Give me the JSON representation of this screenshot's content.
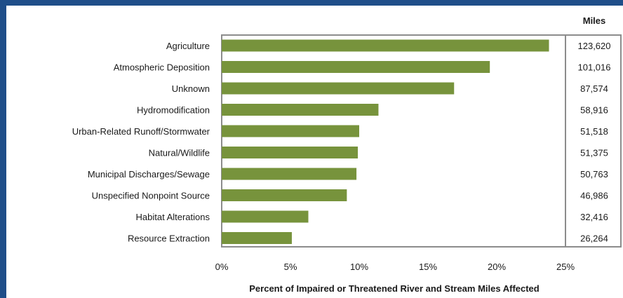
{
  "colors": {
    "background_border": "#1f4e89",
    "bar": "#77933c",
    "frame_line": "#8c8c8c"
  },
  "chart_data": {
    "type": "bar",
    "orientation": "horizontal",
    "categories": [
      "Agriculture",
      "Atmospheric Deposition",
      "Unknown",
      "Hydromodification",
      "Urban-Related Runoff/Stormwater",
      "Natural/Wildlife",
      "Municipal Discharges/Sewage",
      "Unspecified Nonpoint Source",
      "Habitat Alterations",
      "Resource Extraction"
    ],
    "values": [
      23.8,
      19.5,
      16.9,
      11.4,
      10.0,
      9.9,
      9.8,
      9.1,
      6.3,
      5.1
    ],
    "miles_header": "Miles",
    "miles": [
      "123,620",
      "101,016",
      "87,574",
      "58,916",
      "51,518",
      "51,375",
      "50,763",
      "46,986",
      "32,416",
      "26,264"
    ],
    "xlabel": "Percent of Impaired or Threatened River and Stream Miles Affected",
    "xticks": [
      "0%",
      "5%",
      "10%",
      "15%",
      "20%",
      "25%"
    ],
    "xlim": [
      0,
      25
    ],
    "grid": false,
    "legend": "none"
  }
}
